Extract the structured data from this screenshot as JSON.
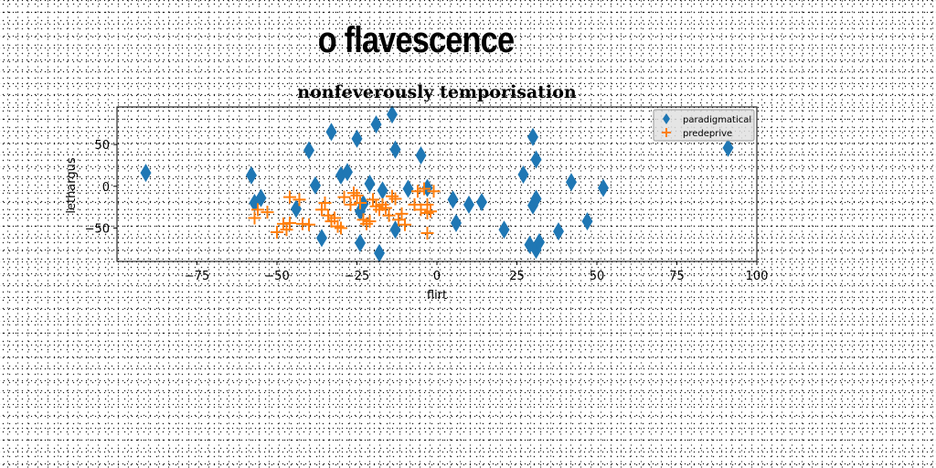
{
  "headline": "o flavescence",
  "chart_data": {
    "type": "scatter",
    "title": "nonfeverously temporisation",
    "xlabel": "flirt",
    "ylabel": "lethargus",
    "xlim": [
      -100,
      100
    ],
    "ylim": [
      -90,
      95
    ],
    "xticks": [
      -75,
      -50,
      -25,
      0,
      25,
      50,
      75,
      100
    ],
    "yticks": [
      50,
      0,
      -50
    ],
    "grid": false,
    "legend_position": "top-right",
    "series": [
      {
        "name": "paradigmatical",
        "color": "#1f77b4",
        "marker": "diamond",
        "points": [
          [
            -91,
            16
          ],
          [
            -58,
            13
          ],
          [
            -57,
            -20
          ],
          [
            -55,
            -14
          ],
          [
            -44,
            -27
          ],
          [
            -40,
            43
          ],
          [
            -38,
            1
          ],
          [
            -36,
            -62
          ],
          [
            -33,
            65
          ],
          [
            -30,
            13
          ],
          [
            -28,
            17
          ],
          [
            -25,
            57
          ],
          [
            -24,
            -68
          ],
          [
            -24,
            -30
          ],
          [
            -23,
            -21
          ],
          [
            -21,
            3
          ],
          [
            -19,
            74
          ],
          [
            -18,
            -80
          ],
          [
            -17,
            -5
          ],
          [
            -14,
            86
          ],
          [
            -13,
            -52
          ],
          [
            -13,
            44
          ],
          [
            -9,
            -3
          ],
          [
            -5,
            37
          ],
          [
            -3,
            -2
          ],
          [
            5,
            -16
          ],
          [
            6,
            -44
          ],
          [
            10,
            -22
          ],
          [
            14,
            -19
          ],
          [
            21,
            -52
          ],
          [
            27,
            14
          ],
          [
            29,
            -70
          ],
          [
            30,
            -23
          ],
          [
            30,
            59
          ],
          [
            31,
            -15
          ],
          [
            31,
            32
          ],
          [
            31,
            -76
          ],
          [
            32,
            -67
          ],
          [
            38,
            -54
          ],
          [
            42,
            5
          ],
          [
            47,
            -42
          ],
          [
            52,
            -2
          ],
          [
            91,
            46
          ]
        ]
      },
      {
        "name": "predeprive",
        "color": "#ff7f0e",
        "marker": "plus",
        "points": [
          [
            -57,
            -38
          ],
          [
            -56,
            -28
          ],
          [
            -53,
            -31
          ],
          [
            -50,
            -55
          ],
          [
            -48,
            -45
          ],
          [
            -47,
            -52
          ],
          [
            -46,
            -44
          ],
          [
            -46,
            -13
          ],
          [
            -43,
            -16
          ],
          [
            -42,
            -45
          ],
          [
            -40,
            -46
          ],
          [
            -36,
            -28
          ],
          [
            -35,
            -20
          ],
          [
            -34,
            -35
          ],
          [
            -33,
            -42
          ],
          [
            -32,
            -38
          ],
          [
            -31,
            -48
          ],
          [
            -30,
            -50
          ],
          [
            -29,
            -13
          ],
          [
            -27,
            -22
          ],
          [
            -26,
            -8
          ],
          [
            -25,
            -11
          ],
          [
            -24,
            -20
          ],
          [
            -23,
            -40
          ],
          [
            -22,
            -45
          ],
          [
            -21,
            -42
          ],
          [
            -20,
            -16
          ],
          [
            -19,
            -24
          ],
          [
            -18,
            -28
          ],
          [
            -17,
            -22
          ],
          [
            -16,
            -26
          ],
          [
            -15,
            -35
          ],
          [
            -14,
            -12
          ],
          [
            -13,
            -15
          ],
          [
            -12,
            -40
          ],
          [
            -11,
            -33
          ],
          [
            -10,
            -46
          ],
          [
            -7,
            -22
          ],
          [
            -6,
            -6
          ],
          [
            -5,
            -28
          ],
          [
            -4,
            -3
          ],
          [
            -3,
            -32
          ],
          [
            -3,
            -22
          ],
          [
            -2,
            -30
          ],
          [
            -3,
            -56
          ],
          [
            -1,
            -6
          ]
        ]
      }
    ]
  }
}
